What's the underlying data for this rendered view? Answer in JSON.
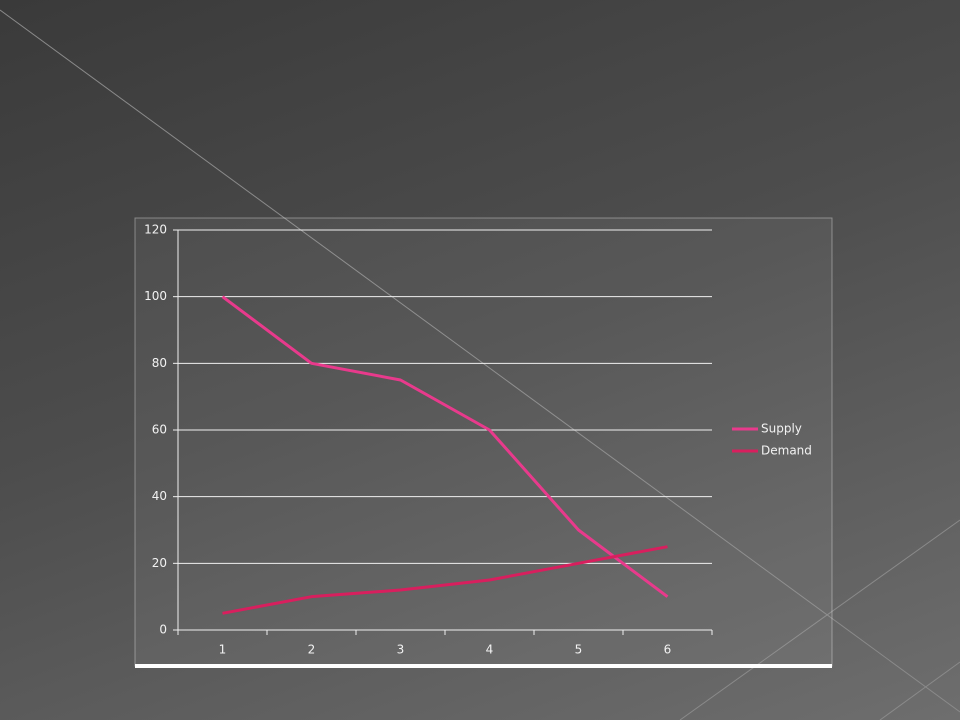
{
  "chart_data": {
    "type": "line",
    "categories": [
      "1",
      "2",
      "3",
      "4",
      "5",
      "6"
    ],
    "series": [
      {
        "name": "Supply",
        "color": "#e83a8c",
        "values": [
          100,
          80,
          75,
          60,
          30,
          10
        ]
      },
      {
        "name": "Demand",
        "color": "#d81f5e",
        "values": [
          5,
          10,
          12,
          15,
          20,
          25
        ]
      }
    ],
    "ylim": [
      0,
      120
    ],
    "yticks": [
      0,
      20,
      40,
      60,
      80,
      100,
      120
    ],
    "grid": true,
    "legend": "right"
  }
}
